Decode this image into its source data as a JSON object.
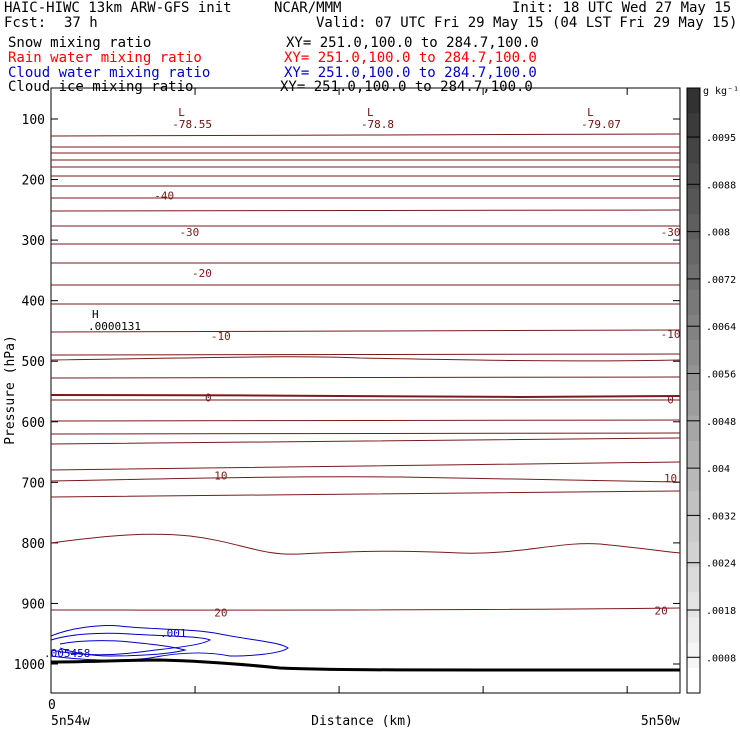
{
  "header": {
    "model": "HAIC-HIWC 13km ARW-GFS init",
    "center": "NCAR/MMM",
    "init": "Init: 18 UTC Wed 27 May 15",
    "fcst_label": "Fcst:",
    "fcst_value": "37 h",
    "valid": "Valid: 07 UTC Fri 29 May 15 (04 LST Fri 29 May 15)"
  },
  "fields": [
    {
      "name": "Snow mixing ratio",
      "xy": "XY= 251.0,100.0 to 284.7,100.0",
      "color": "#000000"
    },
    {
      "name": "Rain water mixing ratio",
      "xy": "XY= 251.0,100.0 to 284.7,100.0",
      "color": "#ff0000"
    },
    {
      "name": "Cloud water mixing ratio",
      "xy": "XY= 251.0,100.0 to 284.7,100.0",
      "color": "#0000cc"
    },
    {
      "name": "Cloud ice mixing ratio",
      "xy": "XY= 251.0,100.0 to 284.7,100.0",
      "color": "#000000"
    }
  ],
  "chart_data": {
    "type": "line",
    "ylabel": "Pressure (hPa)",
    "xlabel": "Distance (km)",
    "yticks": [
      "100",
      "200",
      "300",
      "400",
      "500",
      "600",
      "700",
      "800",
      "900",
      "1000"
    ],
    "x_start_value": "0",
    "x_left_label": "5n54w",
    "x_right_label": "5n50w",
    "lows": [
      {
        "label": "L",
        "value": "-78.55",
        "x": 0.25
      },
      {
        "label": "L",
        "value": "-78.8",
        "x": 0.55
      },
      {
        "label": "L",
        "value": "-79.07",
        "x": 0.9
      }
    ],
    "high": {
      "label": "H",
      "value": ".0000131"
    },
    "temperature_labels": [
      {
        "text": "-40",
        "x": 0.18,
        "p": 226
      },
      {
        "text": "-30",
        "x": 0.22,
        "p": 287
      },
      {
        "text": "-30",
        "x": 0.985,
        "p": 287
      },
      {
        "text": "-20",
        "x": 0.24,
        "p": 354
      },
      {
        "text": "-10",
        "x": 0.27,
        "p": 458
      },
      {
        "text": "-10",
        "x": 0.985,
        "p": 455
      },
      {
        "text": "0",
        "x": 0.25,
        "p": 560
      },
      {
        "text": "0",
        "x": 0.985,
        "p": 563
      },
      {
        "text": "10",
        "x": 0.27,
        "p": 689
      },
      {
        "text": "10",
        "x": 0.985,
        "p": 693
      },
      {
        "text": "20",
        "x": 0.27,
        "p": 915
      },
      {
        "text": "20",
        "x": 0.97,
        "p": 912
      }
    ],
    "cloud_water_labels": [
      ".001",
      ".005458"
    ],
    "colorbar": {
      "units": "g kg⁻¹",
      "labels": [
        ".0095",
        ".0088",
        ".008",
        ".0072",
        ".0064",
        ".0056",
        ".0048",
        ".004",
        ".0032",
        ".0024",
        ".0018",
        ".0008"
      ]
    }
  }
}
